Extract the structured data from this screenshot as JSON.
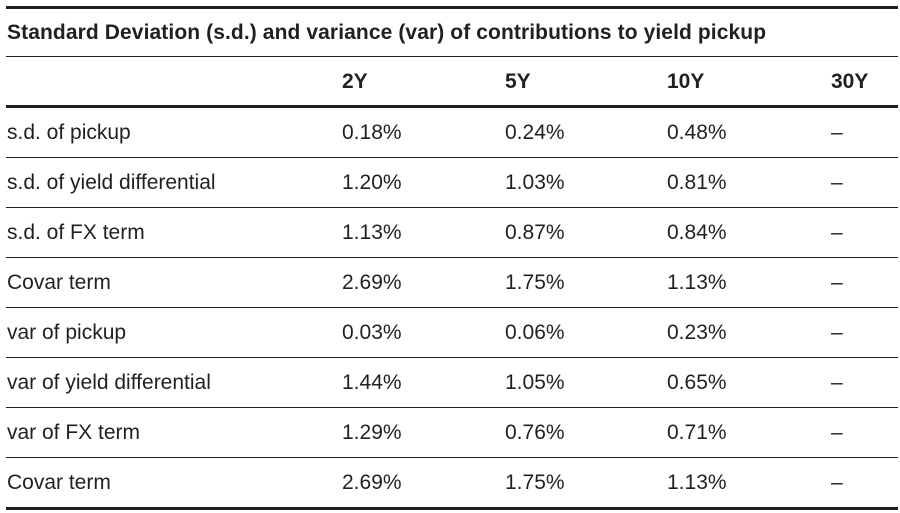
{
  "table": {
    "caption": "Standard Deviation (s.d.) and variance (var) of contributions to yield pickup",
    "headers": [
      "",
      "2Y",
      "5Y",
      "10Y",
      "30Y"
    ],
    "rows": [
      {
        "label": "s.d. of pickup",
        "values": [
          "0.18%",
          "0.24%",
          "0.48%",
          "–"
        ]
      },
      {
        "label": "s.d. of yield differential",
        "values": [
          "1.20%",
          "1.03%",
          "0.81%",
          "–"
        ]
      },
      {
        "label": "s.d. of FX term",
        "values": [
          "1.13%",
          "0.87%",
          "0.84%",
          "–"
        ]
      },
      {
        "label": "Covar term",
        "values": [
          "2.69%",
          "1.75%",
          "1.13%",
          "–"
        ]
      },
      {
        "label": "var of pickup",
        "values": [
          "0.03%",
          "0.06%",
          "0.23%",
          "–"
        ]
      },
      {
        "label": "var of yield differential",
        "values": [
          "1.44%",
          "1.05%",
          "0.65%",
          "–"
        ]
      },
      {
        "label": "var of FX term",
        "values": [
          "1.29%",
          "0.76%",
          "0.71%",
          "–"
        ]
      },
      {
        "label": "Covar term",
        "values": [
          "2.69%",
          "1.75%",
          "1.13%",
          "–"
        ]
      }
    ]
  }
}
